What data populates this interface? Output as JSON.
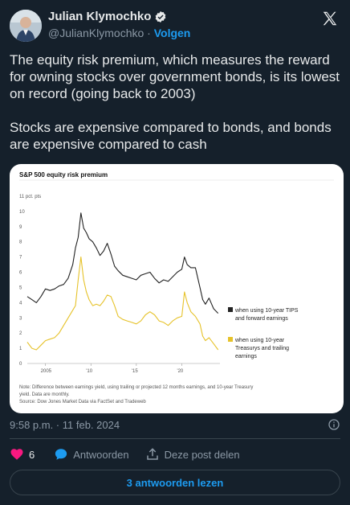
{
  "author": {
    "display_name": "Julian Klymochko",
    "handle": "@JulianKlymochko",
    "separator": "·",
    "follow_label": "Volgen",
    "verified_icon": "verified-badge-icon",
    "avatar": "profile-avatar"
  },
  "tweet": {
    "text": "The equity risk premium, which measures the reward for owning stocks over government bonds, is its lowest on record (going back to 2003)\n\nStocks are expensive compared to bonds, and bonds are expensive compared to cash"
  },
  "chart_image": {
    "title": "S&P 500 equity risk premium",
    "note_lines": [
      "Note: Difference between earnings yield, using trailing or projected 12 months earnings, and 10-year Treasury",
      "yield. Data are monthly.",
      "Source: Dow Jones Market Data via FactSet and Tradeweb"
    ]
  },
  "chart_data": {
    "type": "line",
    "title": "S&P 500 equity risk premium",
    "ylabel": "pct. pts",
    "ylim": [
      0,
      11
    ],
    "y_ticks": [
      "11 pct. pts",
      "10",
      "9",
      "8",
      "7",
      "6",
      "5",
      "4",
      "3",
      "2",
      "1",
      "0"
    ],
    "x_ticks": [
      "2005",
      "'10",
      "'15",
      "'20"
    ],
    "x": [
      2003,
      2003.5,
      2004,
      2004.5,
      2005,
      2005.5,
      2006,
      2006.5,
      2007,
      2007.5,
      2008,
      2008.3,
      2008.6,
      2008.9,
      2009.2,
      2009.5,
      2009.8,
      2010.2,
      2010.6,
      2011,
      2011.4,
      2011.8,
      2012.2,
      2012.6,
      2013,
      2013.5,
      2014,
      2014.5,
      2015,
      2015.5,
      2016,
      2016.5,
      2017,
      2017.5,
      2018,
      2018.5,
      2019,
      2019.5,
      2020,
      2020.3,
      2020.6,
      2021,
      2021.5,
      2022,
      2022.3,
      2022.6,
      2023,
      2023.5,
      2024
    ],
    "series": [
      {
        "name": "when using 10-year TIPS and forward earnings",
        "color": "#222222",
        "values": [
          4.4,
          4.2,
          4.0,
          4.4,
          4.9,
          4.8,
          4.9,
          5.1,
          5.2,
          5.6,
          6.5,
          7.6,
          8.3,
          9.9,
          8.9,
          8.6,
          8.2,
          8.0,
          7.6,
          7.1,
          7.4,
          7.9,
          7.2,
          6.4,
          6.1,
          5.8,
          5.7,
          5.6,
          5.5,
          5.8,
          5.9,
          6.0,
          5.6,
          5.3,
          5.5,
          5.4,
          5.7,
          6.0,
          6.2,
          7.0,
          6.5,
          6.3,
          6.3,
          5.0,
          4.2,
          3.9,
          4.3,
          3.6,
          3.3
        ]
      },
      {
        "name": "when using 10-year Treasurys and trailing earnings",
        "color": "#e6c229",
        "values": [
          1.4,
          1.0,
          0.9,
          1.2,
          1.5,
          1.6,
          1.7,
          2.0,
          2.5,
          3.0,
          3.5,
          3.8,
          5.5,
          7.0,
          5.5,
          4.7,
          4.2,
          3.8,
          3.9,
          3.8,
          4.1,
          4.5,
          4.4,
          3.8,
          3.1,
          2.9,
          2.8,
          2.7,
          2.6,
          2.8,
          3.2,
          3.4,
          3.2,
          2.8,
          2.7,
          2.5,
          2.8,
          3.0,
          3.1,
          4.7,
          4.0,
          3.4,
          3.1,
          2.6,
          1.8,
          1.5,
          1.7,
          1.3,
          0.9
        ]
      }
    ],
    "legend_lines": [
      [
        "when using 10-year TIPS",
        "and forward earnings"
      ],
      [
        "when using 10-year",
        "Treasurys and trailing",
        "earnings"
      ]
    ],
    "legend_position": "right",
    "grid": false
  },
  "meta": {
    "timestamp": "9:58 p.m. · 11 feb. 2024"
  },
  "actions": {
    "like_count": "6",
    "reply_label": "Antwoorden",
    "share_label": "Deze post delen",
    "read_replies_label": "3 antwoorden lezen"
  },
  "colors": {
    "background": "#15202b",
    "accent": "#1d9bf0",
    "like": "#f91880",
    "series_black": "#222222",
    "series_yellow": "#e6c229"
  }
}
